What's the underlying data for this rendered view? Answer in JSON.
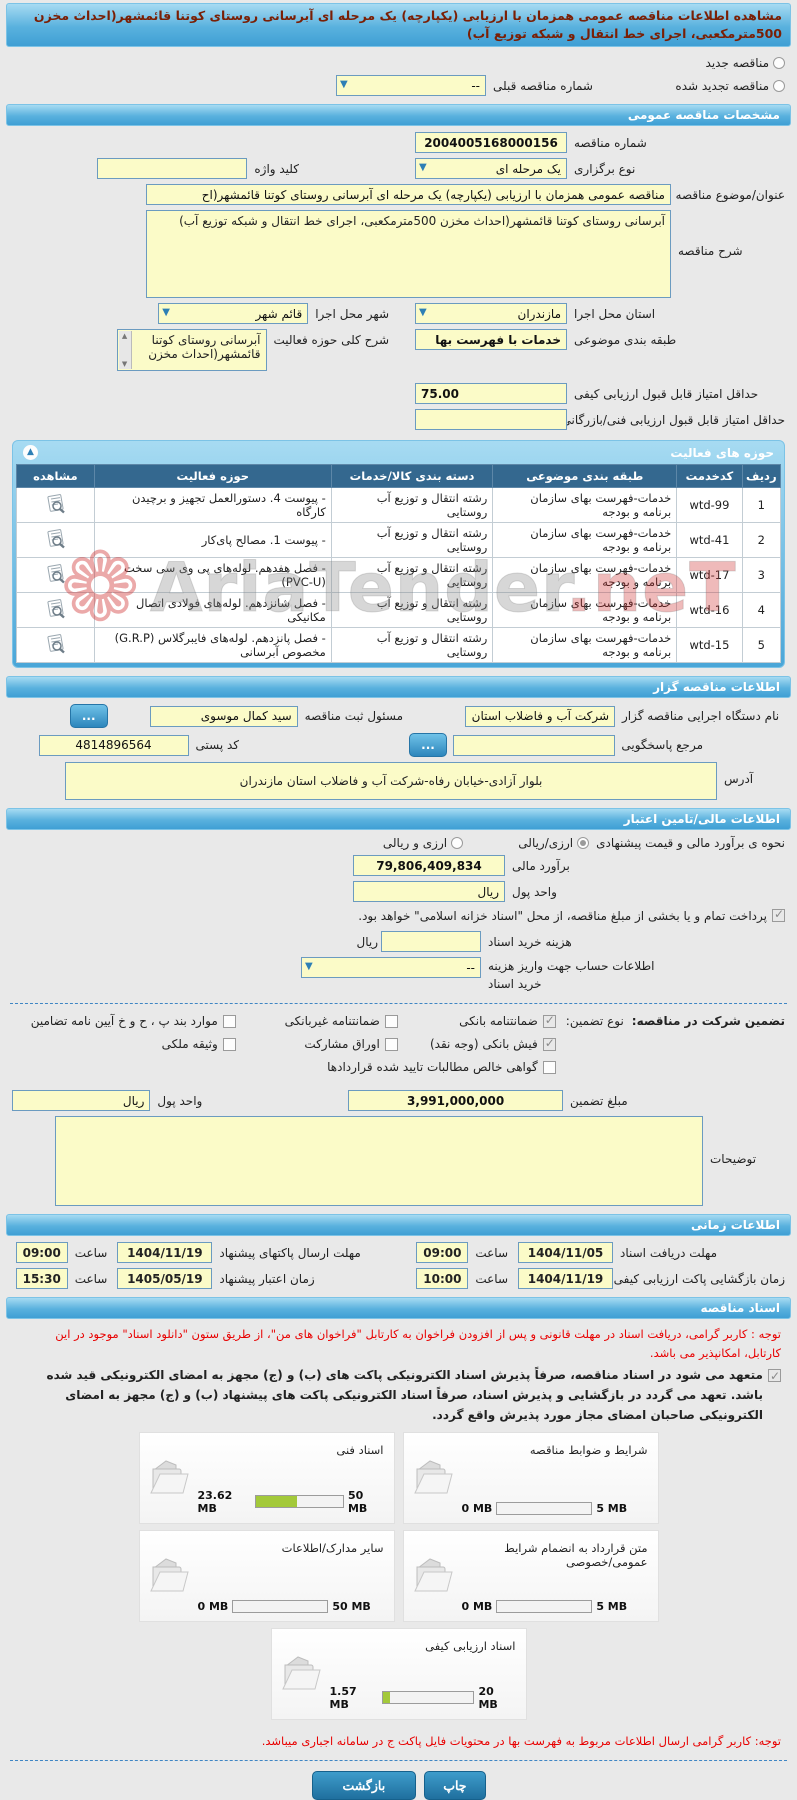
{
  "page": {
    "title": "مشاهده اطلاعات مناقصه عمومی همزمان با ارزیابی (یکپارچه) یک مرحله ای آبرسانی روستای کوتنا قائمشهر(احداث مخزن 500مترمکعبی، اجرای خط انتقال و شبکه توزیع آب)",
    "watermark_main": "AriaTender",
    "watermark_suffix": ".neT"
  },
  "renew": {
    "new_label": "مناقصه جدید",
    "renewed_label": "مناقصه تجدید شده",
    "prev_number_label": "شماره مناقصه قبلی",
    "prev_number_value": "--"
  },
  "specs": {
    "header": "مشخصات مناقصه عمومی",
    "number_label": "شماره مناقصه",
    "number_value": "2004005168000156",
    "type_label": "نوع برگزاری",
    "type_value": "یک مرحله ای",
    "keyword_label": "کلید واژه",
    "keyword_value": "",
    "subject_label": "عنوان/موضوع مناقصه",
    "subject_value": "مناقصه عمومی همزمان با ارزیابی (یکپارچه) یک مرحله ای آبرسانی روستای کوتنا قائمشهر(اح",
    "desc_label": "شرح مناقصه",
    "desc_value": "آبرسانی روستای کوتنا قائمشهر(احداث مخزن 500مترمکعبی، اجرای خط انتقال و شبکه توزیع آب)",
    "province_label": "استان محل اجرا",
    "province_value": "مازندران",
    "city_label": "شهر محل اجرا",
    "city_value": "قائم شهر",
    "category_label": "طبقه بندی موضوعی",
    "category_value": "خدمات با فهرست بها",
    "scope_label": "شرح کلی حوزه فعالیت",
    "scope_value": "آبرسانی روستای کوتنا قائمشهر(احداث مخزن",
    "min_quality_label": "حداقل امتیاز قابل قبول ارزیابی کیفی",
    "min_quality_value": "75.00",
    "min_tech_label": "حداقل امتیاز قابل قبول ارزیابی فنی/بازرگانی",
    "min_tech_value": ""
  },
  "activity_table": {
    "header": "حوزه های فعالیت",
    "columns": [
      "ردیف",
      "کدخدمت",
      "طبقه بندی موضوعی",
      "دسته بندی کالا/خدمات",
      "حوزه فعالیت",
      "مشاهده"
    ],
    "rows": [
      {
        "row": "1",
        "code": "wtd-99",
        "category": "خدمات-فهرست بهای سازمان برنامه و بودجه",
        "group": "رشته انتقال و توزیع آب روستایی",
        "field": "- پیوست 4. دستورالعمل تجهیز و برچیدن کارگاه"
      },
      {
        "row": "2",
        "code": "wtd-41",
        "category": "خدمات-فهرست بهای سازمان برنامه و بودجه",
        "group": "رشته انتقال و توزیع آب روستایی",
        "field": "- پیوست 1. مصالح پای‌کار"
      },
      {
        "row": "3",
        "code": "wtd-17",
        "category": "خدمات-فهرست بهای سازمان برنامه و بودجه",
        "group": "رشته انتقال و توزیع آب روستایی",
        "field": "- فصل هفدهم. لوله‌های پی وی سی سخت (PVC-U)"
      },
      {
        "row": "4",
        "code": "wtd-16",
        "category": "خدمات-فهرست بهای سازمان برنامه و بودجه",
        "group": "رشته انتقال و توزیع آب روستایی",
        "field": "- فصل شانزدهم. لوله‌های فولادی اتصال مکانیکی"
      },
      {
        "row": "5",
        "code": "wtd-15",
        "category": "خدمات-فهرست بهای سازمان برنامه و بودجه",
        "group": "رشته انتقال و توزیع آب روستایی",
        "field": "- فصل پانزدهم. لوله‌های فایبرگلاس (G.R.P) مخصوص آبرسانی"
      }
    ]
  },
  "org": {
    "header": "اطلاعات مناقصه گزار",
    "agency_label": "نام دستگاه اجرایی مناقصه گزار",
    "agency_value": "شرکت آب و فاضلاب استان",
    "registrar_label": "مسئول ثبت مناقصه",
    "registrar_value": "سید کمال موسوی",
    "browse_label": "...",
    "contact_label": "مرجع پاسخگویی",
    "contact_value": "",
    "postal_label": "کد پستی",
    "postal_value": "4814896564",
    "address_label": "آدرس",
    "address_value": "بلوار آزادی-خیابان رفاه-شرکت آب و فاضلاب استان مازندران"
  },
  "finance": {
    "header": "اطلاعات مالی/تامین اعتبار",
    "estimate_method_label": "نحوه ی برآورد مالی و قیمت پیشنهادی",
    "option_rial": "ارزی/ریالی",
    "option_both": "ارزی و ریالی",
    "estimate_label": "برآورد مالی",
    "estimate_value": "79,806,409,834",
    "currency_label": "واحد پول",
    "currency_value": "ریال",
    "treasury_note": "پرداخت تمام و یا بخشی از مبلغ مناقصه، از محل \"اسناد خزانه اسلامی\" خواهد بود.",
    "doc_fee_label": "هزینه خرید اسناد",
    "doc_fee_value": "",
    "doc_fee_suffix": "ریال",
    "account_label1": "اطلاعات حساب جهت واریز هزینه",
    "account_label2": "خرید اسناد",
    "account_value": "--",
    "guarantee_title": "تضمین شرکت در مناقصه:",
    "guarantee_type_label": "نوع تضمین:",
    "guarantee_options": [
      {
        "label": "ضمانتنامه بانکی",
        "checked": true
      },
      {
        "label": "فیش بانکی (وجه نقد)",
        "checked": true
      },
      {
        "label": "گواهی خالص مطالبات تایید شده قراردادها",
        "checked": false
      },
      {
        "label": "ضمانتنامه غیربانکی",
        "checked": false
      },
      {
        "label": "اوراق مشارکت",
        "checked": false
      },
      {
        "label": "موارد بند پ ، ح و خ آیین نامه تضامین",
        "checked": false
      },
      {
        "label": "وثیقه ملکی",
        "checked": false
      }
    ],
    "guarantee_amount_label": "مبلغ تضمین",
    "guarantee_amount_value": "3,991,000,000",
    "guarantee_currency_label": "واحد پول",
    "guarantee_currency_value": "ریال",
    "notes_label": "توضیحات",
    "notes_value": ""
  },
  "schedule": {
    "header": "اطلاعات زمانی",
    "hour_label": "ساعت",
    "items": [
      {
        "label": "مهلت دریافت اسناد",
        "date": "1404/11/05",
        "time": "09:00"
      },
      {
        "label": "مهلت ارسال پاکتهای پیشنهاد",
        "date": "1404/11/19",
        "time": "09:00"
      },
      {
        "label": "زمان بازگشایی پاکت ارزیابی کیفی",
        "date": "1404/11/19",
        "time": "10:00"
      },
      {
        "label": "زمان اعتبار پیشنهاد",
        "date": "1405/05/19",
        "time": "15:30"
      }
    ]
  },
  "documents": {
    "header": "اسناد مناقصه",
    "notice1": "توجه : کاربر گرامی، دریافت اسناد در مهلت قانونی و پس از افزودن فراخوان به کارتابل \"فراخوان های من\"، از طریق ستون \"دانلود اسناد\" موجود در این کارتابل، امکانپذیر می باشد.",
    "commitment": "متعهد می شود در اسناد مناقصه، صرفاً پذیرش اسناد الکترونیکی پاکت های (ب) و (ج) مجهز به امضای الکترونیکی قید شده باشد. تعهد می گردد در بازگشایی و پذیرش اسناد، صرفاً اسناد الکترونیکی پاکت های پیشنهاد (ب) و (ج) مجهز به امضای الکترونیکی صاحبان امضای مجاز مورد پذیرش واقع گردد.",
    "files": [
      {
        "label": "شرایط و ضوابط مناقصه",
        "used": "0 MB",
        "max": "5 MB",
        "pct": 0
      },
      {
        "label": "اسناد فنی",
        "used": "23.62 MB",
        "max": "50 MB",
        "pct": 47
      },
      {
        "label": "متن قرارداد به انضمام شرایط عمومی/خصوصی",
        "used": "0 MB",
        "max": "5 MB",
        "pct": 0
      },
      {
        "label": "سایر مدارک/اطلاعات",
        "used": "0 MB",
        "max": "50 MB",
        "pct": 0
      },
      {
        "label": "اسناد ارزیابی کیفی",
        "used": "1.57 MB",
        "max": "20 MB",
        "pct": 8
      }
    ],
    "notice2": "توجه: کاربر گرامی ارسال اطلاعات مربوط به فهرست بها در محتویات فایل پاکت ج در سامانه اجباری میباشد."
  },
  "actions": {
    "print": "چاپ",
    "back": "بازگشت"
  }
}
